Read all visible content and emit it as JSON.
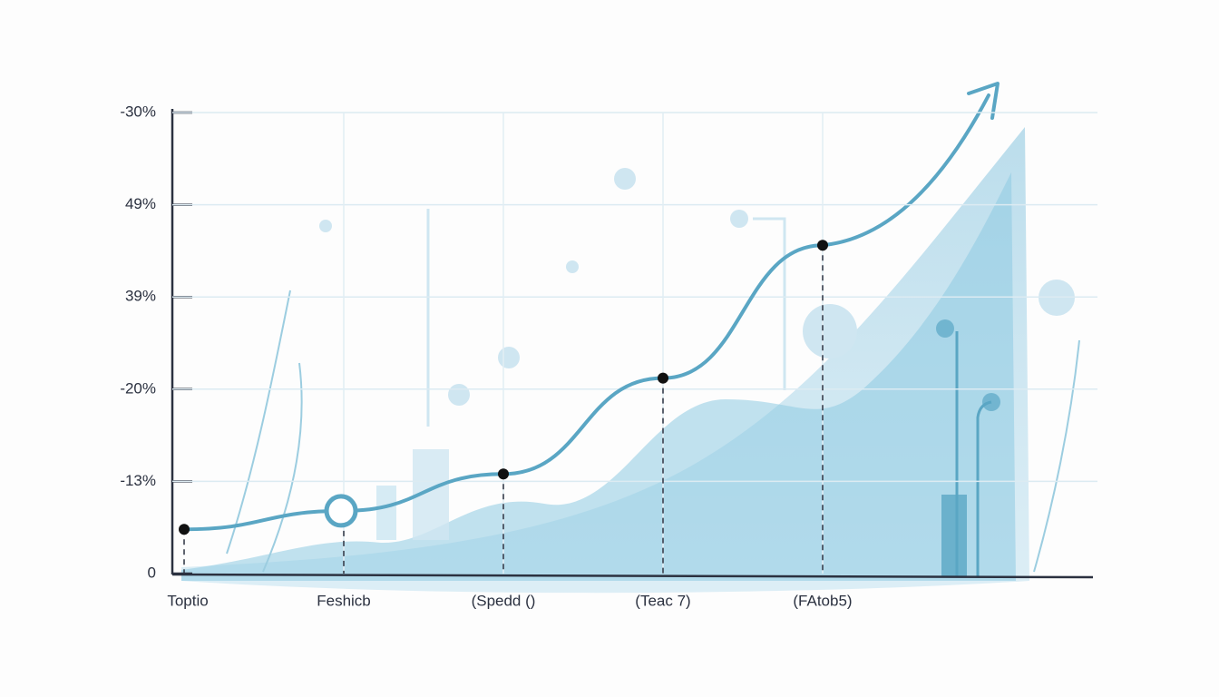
{
  "chart_data": {
    "type": "line",
    "categories": [
      "Toptio",
      "Feshicb",
      "(Spedd ()",
      "(Teac 7)",
      "(FAtob5)"
    ],
    "values": [
      0.48,
      0.68,
      1.08,
      2.12,
      3.56
    ],
    "color": "#5aa6c4",
    "ylim": [
      0,
      5
    ],
    "y_axis_labels": [
      "0",
      "-13%",
      "-20%",
      "39%",
      "49%",
      "-30%"
    ],
    "grid": true
  }
}
